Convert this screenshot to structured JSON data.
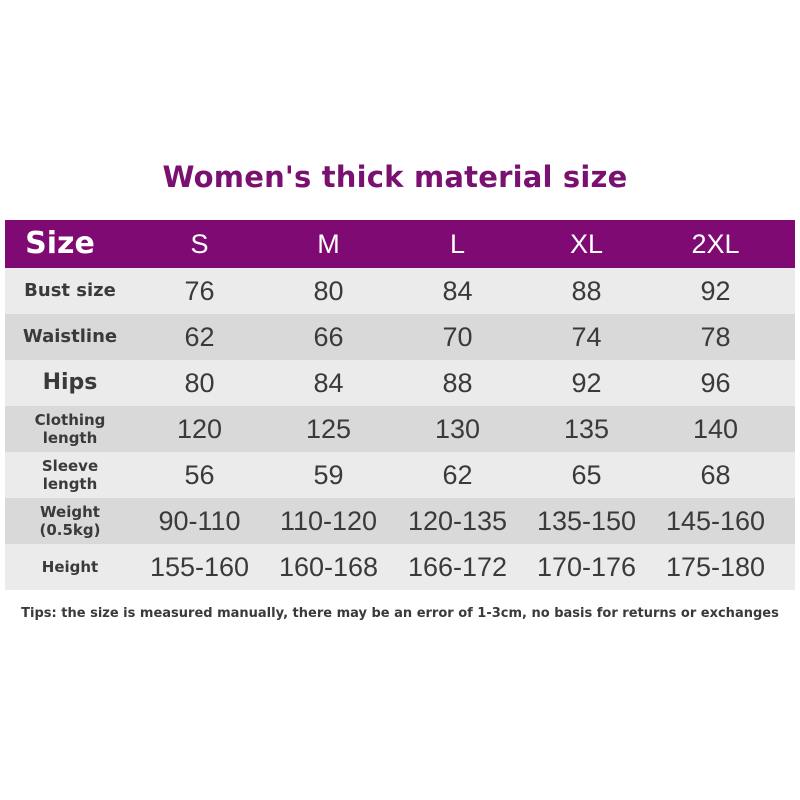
{
  "title": "Women's thick material size",
  "table": {
    "header": {
      "label": "Size",
      "sizes": [
        "S",
        "M",
        "L",
        "XL",
        "2XL"
      ]
    },
    "rows": [
      {
        "label": "Bust size",
        "values": [
          "76",
          "80",
          "84",
          "88",
          "92"
        ]
      },
      {
        "label": "Waistline",
        "values": [
          "62",
          "66",
          "70",
          "74",
          "78"
        ]
      },
      {
        "label": "Hips",
        "values": [
          "80",
          "84",
          "88",
          "92",
          "96"
        ]
      },
      {
        "label_line1": "Clothing",
        "label_line2": "length",
        "values": [
          "120",
          "125",
          "130",
          "135",
          "140"
        ]
      },
      {
        "label_line1": "Sleeve",
        "label_line2": "length",
        "values": [
          "56",
          "59",
          "62",
          "65",
          "68"
        ]
      },
      {
        "label_line1": "Weight",
        "label_line2": "(0.5kg)",
        "values": [
          "90-110",
          "110-120",
          "120-135",
          "135-150",
          "145-160"
        ]
      },
      {
        "label": "Height",
        "values": [
          "155-160",
          "160-168",
          "166-172",
          "170-176",
          "175-180"
        ]
      }
    ]
  },
  "tips": "Tips: the size is measured manually, there may be an error of 1-3cm, no basis for returns or exchanges",
  "colors": {
    "header_bg": "#800a73",
    "title": "#7a1070",
    "row_light": "#ebebeb",
    "row_dark": "#d9d9d9"
  }
}
